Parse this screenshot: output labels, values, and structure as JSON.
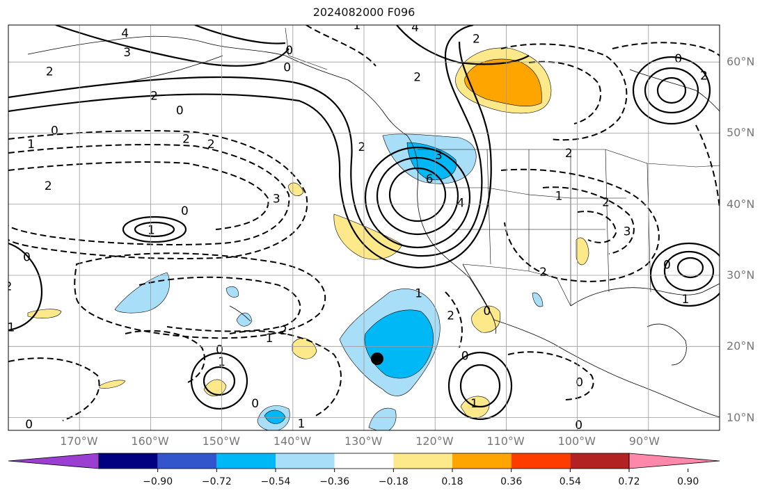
{
  "title": "2024082000 F096",
  "lon_labels": [
    "170°W",
    "160°W",
    "150°W",
    "140°W",
    "130°W",
    "120°W",
    "110°W",
    "100°W",
    "90°W"
  ],
  "lat_labels": [
    "60°N",
    "50°N",
    "40°N",
    "30°N",
    "20°N",
    "10°N"
  ],
  "colorbar": {
    "colors": [
      "#9a3fd2",
      "#000080",
      "#3355cc",
      "#00b8f5",
      "#a9def9",
      "#ffffff",
      "#fde98a",
      "#ffa500",
      "#ff3c00",
      "#b22222",
      "#ff88aa"
    ],
    "labels": [
      "−0.90",
      "−0.72",
      "−0.54",
      "−0.36",
      "−0.18",
      "0.18",
      "0.36",
      "0.54",
      "0.72",
      "0.90"
    ]
  },
  "low_center_marker": "black-dot",
  "contour_labels": [
    {
      "text": "0",
      "lon": -140.5,
      "lat": 61.7
    },
    {
      "text": "0",
      "lon": -140.8,
      "lat": 59.3
    },
    {
      "text": "2",
      "lon": -174.2,
      "lat": 58.7
    },
    {
      "text": "2",
      "lon": -159.5,
      "lat": 55.3
    },
    {
      "text": "0",
      "lon": -155.9,
      "lat": 53.2
    },
    {
      "text": "0",
      "lon": -173.5,
      "lat": 50.4
    },
    {
      "text": "1",
      "lon": -176.8,
      "lat": 48.5
    },
    {
      "text": "2",
      "lon": -151.5,
      "lat": 48.5
    },
    {
      "text": "2",
      "lon": -155.0,
      "lat": 49.2
    },
    {
      "text": "2",
      "lon": -174.4,
      "lat": 42.6
    },
    {
      "text": "0",
      "lon": -155.2,
      "lat": 39.1
    },
    {
      "text": "1",
      "lon": -159.9,
      "lat": 36.4
    },
    {
      "text": "0",
      "lon": -177.4,
      "lat": 32.6
    },
    {
      "text": "1",
      "lon": -179.6,
      "lat": 22.7
    },
    {
      "text": "2",
      "lon": -180.0,
      "lat": 28.5
    },
    {
      "text": "3",
      "lon": -142.3,
      "lat": 40.8
    },
    {
      "text": "2",
      "lon": -141.3,
      "lat": 22.3
    },
    {
      "text": "1",
      "lon": -143.3,
      "lat": 21.2
    },
    {
      "text": "0",
      "lon": -150.3,
      "lat": 19.6
    },
    {
      "text": "1",
      "lon": -150.0,
      "lat": 17.9
    },
    {
      "text": "0",
      "lon": -145.3,
      "lat": 12.0
    },
    {
      "text": "1",
      "lon": -138.8,
      "lat": 9.2
    },
    {
      "text": "0",
      "lon": -177.1,
      "lat": 9.1
    },
    {
      "text": "1",
      "lon": -122.3,
      "lat": 27.5
    },
    {
      "text": "2",
      "lon": -117.8,
      "lat": 24.4
    },
    {
      "text": "0",
      "lon": -112.7,
      "lat": 25.0
    },
    {
      "text": "0",
      "lon": -115.8,
      "lat": 18.7
    },
    {
      "text": "1",
      "lon": -114.5,
      "lat": 12.0
    },
    {
      "text": "0",
      "lon": -99.7,
      "lat": 15.0
    },
    {
      "text": "0",
      "lon": -99.8,
      "lat": 9.0
    },
    {
      "text": "3",
      "lon": -119.5,
      "lat": 46.9
    },
    {
      "text": "6",
      "lon": -120.8,
      "lat": 43.6
    },
    {
      "text": "4",
      "lon": -116.4,
      "lat": 40.2
    },
    {
      "text": "2",
      "lon": -130.3,
      "lat": 48.1
    },
    {
      "text": "2",
      "lon": -122.5,
      "lat": 57.9
    },
    {
      "text": "2",
      "lon": -114.2,
      "lat": 63.3
    },
    {
      "text": "4",
      "lon": -122.8,
      "lat": 64.9
    },
    {
      "text": "1",
      "lon": -131.0,
      "lat": 65.2
    },
    {
      "text": "0",
      "lon": -85.8,
      "lat": 60.5
    },
    {
      "text": "2",
      "lon": -82.2,
      "lat": 58.1
    },
    {
      "text": "2",
      "lon": -78.6,
      "lat": 52.6
    },
    {
      "text": "2",
      "lon": -101.2,
      "lat": 47.2
    },
    {
      "text": "1",
      "lon": -102.6,
      "lat": 41.2
    },
    {
      "text": "2",
      "lon": -96.0,
      "lat": 40.3
    },
    {
      "text": "3",
      "lon": -93.0,
      "lat": 36.2
    },
    {
      "text": "0",
      "lon": -87.4,
      "lat": 31.5
    },
    {
      "text": "1",
      "lon": -84.8,
      "lat": 26.7
    },
    {
      "text": "2",
      "lon": -104.8,
      "lat": 30.5
    },
    {
      "text": "4",
      "lon": -163.6,
      "lat": 64.1
    },
    {
      "text": "3",
      "lon": -163.3,
      "lat": 61.4
    }
  ]
}
